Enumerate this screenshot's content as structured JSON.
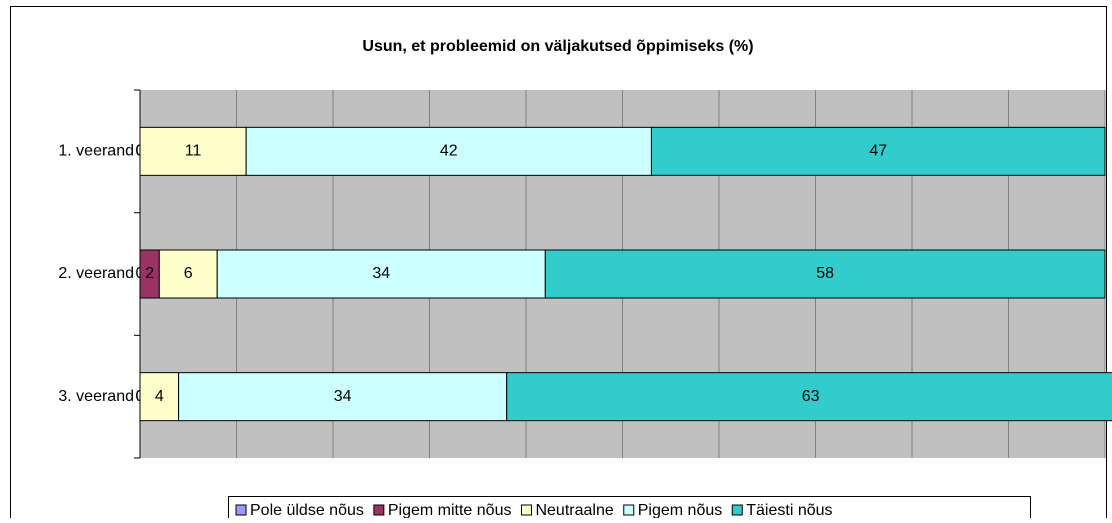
{
  "chart_data": {
    "type": "stacked_barh",
    "title": "Usun, et probleemid on väljakutsed õppimiseks (%)",
    "categories": [
      "1. veerand",
      "2. veerand",
      "3. veerand"
    ],
    "series": [
      {
        "name": "Pole üldse nõus",
        "color": "#9999ff",
        "values": [
          0,
          0,
          0
        ]
      },
      {
        "name": "Pigem mitte nõus",
        "color": "#993366",
        "values": [
          0,
          2,
          0
        ]
      },
      {
        "name": "Neutraalne",
        "color": "#ffffcc",
        "values": [
          11,
          6,
          4
        ]
      },
      {
        "name": "Pigem nõus",
        "color": "#ccffff",
        "values": [
          42,
          34,
          34
        ]
      },
      {
        "name": "Täiesti nõus",
        "color": "#33cccc",
        "values": [
          47,
          58,
          63
        ]
      }
    ],
    "xlim": [
      0,
      100
    ],
    "xticks": [
      0,
      10,
      20,
      30,
      40,
      50,
      60,
      70,
      80,
      90,
      100
    ],
    "grid": true,
    "legend": "bottom"
  }
}
